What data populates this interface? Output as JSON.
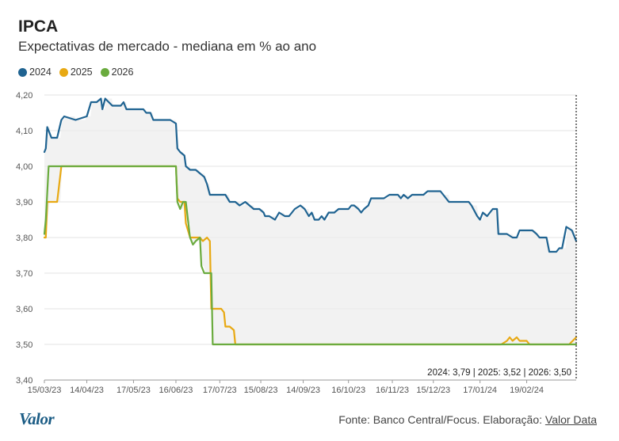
{
  "chart_data": {
    "type": "line",
    "title": "IPCA",
    "subtitle": "Expectativas de mercado - mediana em % ao ano",
    "y_ticks": [
      "4,20",
      "4,10",
      "4,00",
      "3,90",
      "3,80",
      "3,70",
      "3,60",
      "3,50",
      "3,40"
    ],
    "ylim": [
      3.4,
      4.2
    ],
    "x_tick_labels": [
      "15/03/23",
      "14/04/23",
      "17/05/23",
      "16/06/23",
      "17/07/23",
      "15/08/23",
      "14/09/23",
      "16/10/23",
      "16/11/23",
      "15/12/23",
      "17/01/24",
      "19/02/24"
    ],
    "x_ticks": [
      "2023-03-15",
      "2023-04-14",
      "2023-05-17",
      "2023-06-16",
      "2023-07-17",
      "2023-08-15",
      "2023-09-14",
      "2023-10-16",
      "2023-11-16",
      "2023-12-15",
      "2024-01-17",
      "2024-02-19"
    ],
    "xlim": [
      "2023-03-15",
      "2024-03-25"
    ],
    "grid": true,
    "legend_position": "top-left",
    "annotation": "2024: 3,79 | 2025: 3,52 | 2026: 3,50",
    "series": [
      {
        "name": "2024",
        "color": "#1f6391",
        "points": [
          [
            "2023-03-15",
            4.04
          ],
          [
            "2023-03-16",
            4.05
          ],
          [
            "2023-03-17",
            4.11
          ],
          [
            "2023-03-20",
            4.08
          ],
          [
            "2023-03-24",
            4.08
          ],
          [
            "2023-03-27",
            4.13
          ],
          [
            "2023-03-29",
            4.14
          ],
          [
            "2023-04-06",
            4.13
          ],
          [
            "2023-04-14",
            4.14
          ],
          [
            "2023-04-17",
            4.18
          ],
          [
            "2023-04-21",
            4.18
          ],
          [
            "2023-04-24",
            4.19
          ],
          [
            "2023-04-25",
            4.16
          ],
          [
            "2023-04-27",
            4.19
          ],
          [
            "2023-05-02",
            4.17
          ],
          [
            "2023-05-08",
            4.17
          ],
          [
            "2023-05-10",
            4.18
          ],
          [
            "2023-05-12",
            4.16
          ],
          [
            "2023-05-19",
            4.16
          ],
          [
            "2023-05-24",
            4.16
          ],
          [
            "2023-05-26",
            4.15
          ],
          [
            "2023-05-29",
            4.15
          ],
          [
            "2023-05-31",
            4.13
          ],
          [
            "2023-06-12",
            4.13
          ],
          [
            "2023-06-16",
            4.12
          ],
          [
            "2023-06-17",
            4.05
          ],
          [
            "2023-06-19",
            4.04
          ],
          [
            "2023-06-22",
            4.03
          ],
          [
            "2023-06-23",
            4.0
          ],
          [
            "2023-06-26",
            3.99
          ],
          [
            "2023-06-30",
            3.99
          ],
          [
            "2023-07-03",
            3.98
          ],
          [
            "2023-07-06",
            3.97
          ],
          [
            "2023-07-08",
            3.95
          ],
          [
            "2023-07-10",
            3.92
          ],
          [
            "2023-07-21",
            3.92
          ],
          [
            "2023-07-24",
            3.9
          ],
          [
            "2023-07-28",
            3.9
          ],
          [
            "2023-07-31",
            3.89
          ],
          [
            "2023-08-04",
            3.9
          ],
          [
            "2023-08-07",
            3.89
          ],
          [
            "2023-08-10",
            3.88
          ],
          [
            "2023-08-14",
            3.88
          ],
          [
            "2023-08-17",
            3.87
          ],
          [
            "2023-08-18",
            3.86
          ],
          [
            "2023-08-21",
            3.86
          ],
          [
            "2023-08-25",
            3.85
          ],
          [
            "2023-08-28",
            3.87
          ],
          [
            "2023-09-01",
            3.86
          ],
          [
            "2023-09-04",
            3.86
          ],
          [
            "2023-09-06",
            3.87
          ],
          [
            "2023-09-08",
            3.88
          ],
          [
            "2023-09-12",
            3.89
          ],
          [
            "2023-09-15",
            3.88
          ],
          [
            "2023-09-18",
            3.86
          ],
          [
            "2023-09-20",
            3.87
          ],
          [
            "2023-09-22",
            3.85
          ],
          [
            "2023-09-25",
            3.85
          ],
          [
            "2023-09-27",
            3.86
          ],
          [
            "2023-09-29",
            3.85
          ],
          [
            "2023-10-02",
            3.87
          ],
          [
            "2023-10-06",
            3.87
          ],
          [
            "2023-10-09",
            3.88
          ],
          [
            "2023-10-16",
            3.88
          ],
          [
            "2023-10-18",
            3.89
          ],
          [
            "2023-10-20",
            3.89
          ],
          [
            "2023-10-23",
            3.88
          ],
          [
            "2023-10-25",
            3.87
          ],
          [
            "2023-10-27",
            3.88
          ],
          [
            "2023-10-30",
            3.89
          ],
          [
            "2023-11-01",
            3.91
          ],
          [
            "2023-11-03",
            3.91
          ],
          [
            "2023-11-06",
            3.91
          ],
          [
            "2023-11-10",
            3.91
          ],
          [
            "2023-11-14",
            3.92
          ],
          [
            "2023-11-20",
            3.92
          ],
          [
            "2023-11-22",
            3.91
          ],
          [
            "2023-11-24",
            3.92
          ],
          [
            "2023-11-27",
            3.91
          ],
          [
            "2023-11-30",
            3.92
          ],
          [
            "2023-12-04",
            3.92
          ],
          [
            "2023-12-08",
            3.92
          ],
          [
            "2023-12-11",
            3.93
          ],
          [
            "2023-12-20",
            3.93
          ],
          [
            "2023-12-22",
            3.92
          ],
          [
            "2023-12-26",
            3.9
          ],
          [
            "2024-01-09",
            3.9
          ],
          [
            "2024-01-11",
            3.89
          ],
          [
            "2024-01-15",
            3.86
          ],
          [
            "2024-01-17",
            3.85
          ],
          [
            "2024-01-19",
            3.87
          ],
          [
            "2024-01-22",
            3.86
          ],
          [
            "2024-01-24",
            3.87
          ],
          [
            "2024-01-26",
            3.88
          ],
          [
            "2024-01-29",
            3.88
          ],
          [
            "2024-01-30",
            3.81
          ],
          [
            "2024-02-02",
            3.81
          ],
          [
            "2024-02-05",
            3.81
          ],
          [
            "2024-02-09",
            3.8
          ],
          [
            "2024-02-12",
            3.8
          ],
          [
            "2024-02-14",
            3.82
          ],
          [
            "2024-02-23",
            3.82
          ],
          [
            "2024-02-26",
            3.81
          ],
          [
            "2024-02-28",
            3.8
          ],
          [
            "2024-03-04",
            3.8
          ],
          [
            "2024-03-06",
            3.76
          ],
          [
            "2024-03-11",
            3.76
          ],
          [
            "2024-03-13",
            3.77
          ],
          [
            "2024-03-15",
            3.77
          ],
          [
            "2024-03-18",
            3.83
          ],
          [
            "2024-03-22",
            3.82
          ],
          [
            "2024-03-25",
            3.79
          ]
        ]
      },
      {
        "name": "2025",
        "color": "#e8a913",
        "points": [
          [
            "2023-03-15",
            3.8
          ],
          [
            "2023-03-16",
            3.8
          ],
          [
            "2023-03-17",
            3.9
          ],
          [
            "2023-03-24",
            3.9
          ],
          [
            "2023-03-27",
            4.0
          ],
          [
            "2023-06-16",
            4.0
          ],
          [
            "2023-06-17",
            3.91
          ],
          [
            "2023-06-19",
            3.9
          ],
          [
            "2023-06-22",
            3.9
          ],
          [
            "2023-06-23",
            3.84
          ],
          [
            "2023-06-26",
            3.8
          ],
          [
            "2023-07-03",
            3.8
          ],
          [
            "2023-07-05",
            3.79
          ],
          [
            "2023-07-08",
            3.8
          ],
          [
            "2023-07-10",
            3.79
          ],
          [
            "2023-07-11",
            3.6
          ],
          [
            "2023-07-18",
            3.6
          ],
          [
            "2023-07-20",
            3.59
          ],
          [
            "2023-07-21",
            3.55
          ],
          [
            "2023-07-24",
            3.55
          ],
          [
            "2023-07-27",
            3.54
          ],
          [
            "2023-07-28",
            3.5
          ],
          [
            "2024-02-01",
            3.5
          ],
          [
            "2024-02-05",
            3.51
          ],
          [
            "2024-02-07",
            3.52
          ],
          [
            "2024-02-09",
            3.51
          ],
          [
            "2024-02-12",
            3.52
          ],
          [
            "2024-02-14",
            3.51
          ],
          [
            "2024-02-19",
            3.51
          ],
          [
            "2024-02-21",
            3.5
          ],
          [
            "2024-03-20",
            3.5
          ],
          [
            "2024-03-25",
            3.52
          ]
        ]
      },
      {
        "name": "2026",
        "color": "#6aab3e",
        "points": [
          [
            "2023-03-15",
            3.81
          ],
          [
            "2023-03-16",
            3.85
          ],
          [
            "2023-03-18",
            4.0
          ],
          [
            "2023-06-16",
            4.0
          ],
          [
            "2023-06-17",
            3.9
          ],
          [
            "2023-06-19",
            3.88
          ],
          [
            "2023-06-21",
            3.9
          ],
          [
            "2023-06-23",
            3.9
          ],
          [
            "2023-06-26",
            3.8
          ],
          [
            "2023-06-28",
            3.78
          ],
          [
            "2023-06-30",
            3.79
          ],
          [
            "2023-07-03",
            3.8
          ],
          [
            "2023-07-04",
            3.72
          ],
          [
            "2023-07-06",
            3.7
          ],
          [
            "2023-07-11",
            3.7
          ],
          [
            "2023-07-12",
            3.5
          ],
          [
            "2024-03-25",
            3.5
          ]
        ]
      }
    ]
  },
  "footer": {
    "source_prefix": "Fonte: Banco Central/Focus. Elaboração: ",
    "source_link": "Valor Data",
    "logo": "Valor"
  }
}
